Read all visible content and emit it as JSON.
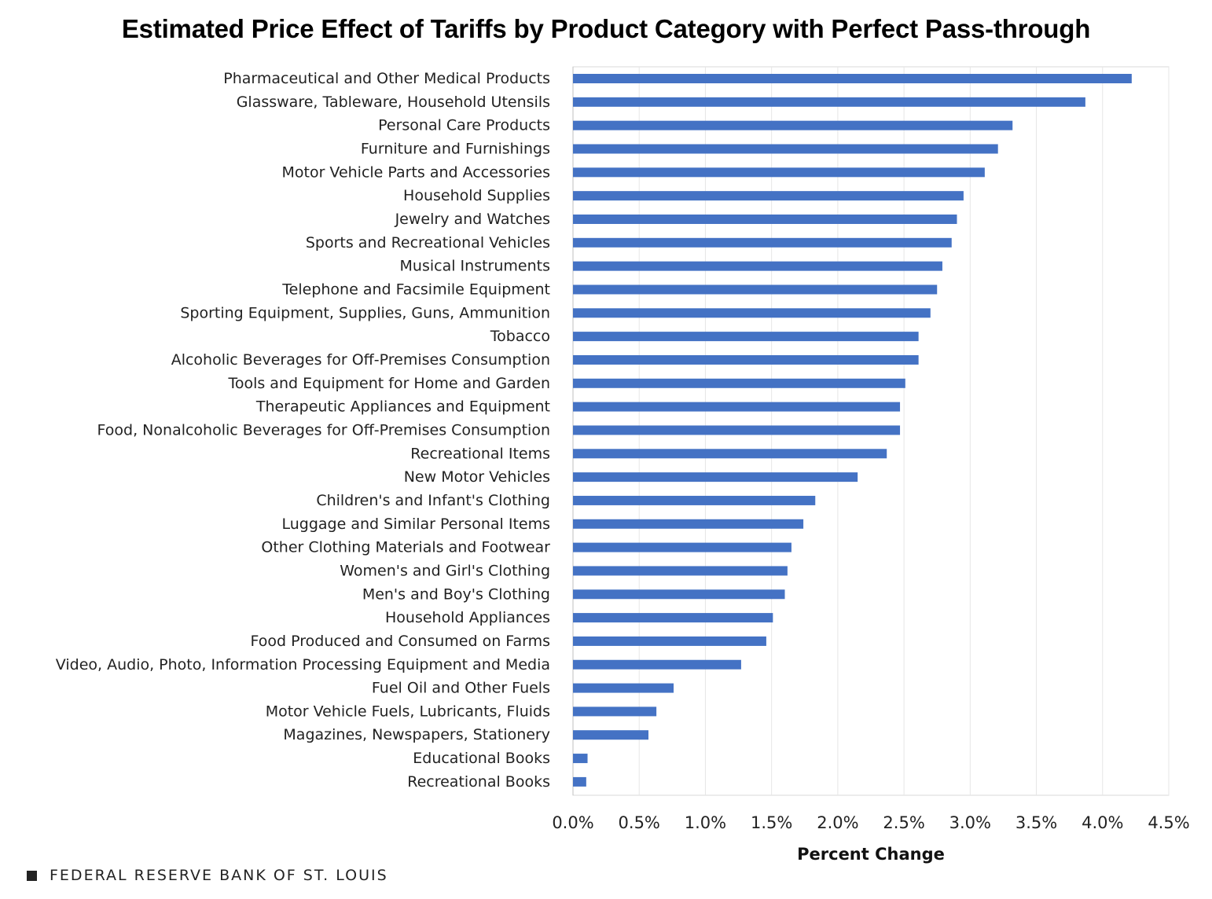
{
  "chart_data": {
    "type": "bar",
    "orientation": "horizontal",
    "title": "Estimated Price Effect of Tariffs by Product Category with Perfect Pass-through",
    "xlabel": "Percent Change",
    "ylabel": "",
    "xlim": [
      0,
      4.5
    ],
    "x_ticks": [
      "0.0%",
      "0.5%",
      "1.0%",
      "1.5%",
      "2.0%",
      "2.5%",
      "3.0%",
      "3.5%",
      "4.0%",
      "4.5%"
    ],
    "x_tick_values": [
      0,
      0.5,
      1.0,
      1.5,
      2.0,
      2.5,
      3.0,
      3.5,
      4.0,
      4.5
    ],
    "bar_color": "#4472C4",
    "categories": [
      "Pharmaceutical and Other Medical Products",
      "Glassware, Tableware, Household Utensils",
      "Personal Care Products",
      "Furniture and Furnishings",
      "Motor Vehicle Parts and Accessories",
      "Household Supplies",
      "Jewelry and Watches",
      "Sports and Recreational Vehicles",
      "Musical Instruments",
      "Telephone and Facsimile Equipment",
      "Sporting Equipment, Supplies, Guns, Ammunition",
      "Tobacco",
      "Alcoholic Beverages for Off-Premises Consumption",
      "Tools and Equipment for Home and Garden",
      "Therapeutic Appliances and Equipment",
      "Food, Nonalcoholic Beverages for Off-Premises Consumption",
      "Recreational Items",
      "New Motor Vehicles",
      "Children's and Infant's Clothing",
      "Luggage and Similar Personal Items",
      "Other Clothing Materials and Footwear",
      "Women's and Girl's Clothing",
      "Men's and Boy's Clothing",
      "Household Appliances",
      "Food Produced and Consumed on Farms",
      "Video, Audio, Photo, Information Processing Equipment and Media",
      "Fuel Oil and Other Fuels",
      "Motor Vehicle Fuels, Lubricants, Fluids",
      "Magazines, Newspapers, Stationery",
      "Educational Books",
      "Recreational Books"
    ],
    "values": [
      4.22,
      3.87,
      3.32,
      3.21,
      3.11,
      2.95,
      2.9,
      2.86,
      2.79,
      2.75,
      2.7,
      2.61,
      2.61,
      2.51,
      2.47,
      2.47,
      2.37,
      2.15,
      1.83,
      1.74,
      1.65,
      1.62,
      1.6,
      1.51,
      1.46,
      1.27,
      0.76,
      0.63,
      0.57,
      0.11,
      0.1
    ]
  },
  "footer": {
    "source": "FEDERAL RESERVE BANK OF ST. LOUIS"
  }
}
